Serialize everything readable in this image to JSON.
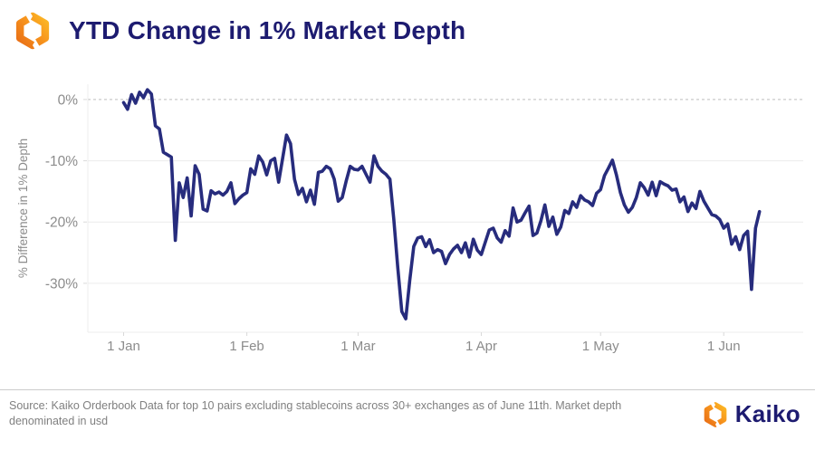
{
  "header": {
    "title": "YTD Change in 1% Market Depth",
    "logo_icon": "kaiko-hexagon-icon"
  },
  "footer": {
    "source_note": "Source: Kaiko Orderbook Data for top 10 pairs excluding stablecoins across 30+ exchanges as of June 11th. Market depth denominated in usd",
    "brand_name": "Kaiko",
    "brand_icon": "kaiko-hexagon-icon"
  },
  "colors": {
    "line": "#272c7d",
    "title_navy": "#1d1b70",
    "axis_text": "#8c8c8c",
    "grid": "#ececec",
    "zero_line": "#bdbdbd",
    "tick": "#d9d9d9",
    "divider": "#cccccc",
    "footer_text": "#808080",
    "logo_orange_dark": "#e96f16",
    "logo_orange_mid": "#f7941d",
    "logo_orange_light": "#fcb826",
    "background": "#ffffff"
  },
  "chart_data": {
    "type": "line",
    "title": "YTD Change in 1% Market Depth",
    "xlabel": "",
    "ylabel": "% Difference in 1% Depth",
    "x_unit": "days since 1 Jan",
    "x_tick_labels": [
      "1 Jan",
      "1 Feb",
      "1 Mar",
      "1 Apr",
      "1 May",
      "1 Jun"
    ],
    "x_tick_days": [
      0,
      31,
      59,
      90,
      120,
      151
    ],
    "xlim_days": [
      -9,
      171
    ],
    "y_ticks": [
      0,
      -10,
      -20,
      -30
    ],
    "y_tick_labels": [
      "0%",
      "-10%",
      "-20%",
      "-30%"
    ],
    "ylim": [
      -38,
      2.5
    ],
    "grid": "horizontal",
    "zero_line_style": "dashed",
    "legend": "none",
    "series": [
      {
        "name": "% difference in 1% depth (top 10 pairs, YTD)",
        "start_day": 0,
        "step_days": 1,
        "values": [
          -0.5,
          -1.6,
          0.8,
          -0.6,
          1.2,
          0.3,
          1.6,
          0.9,
          -4.3,
          -4.8,
          -8.6,
          -9.0,
          -9.4,
          -23.0,
          -13.6,
          -16.0,
          -12.8,
          -19.0,
          -10.8,
          -12.2,
          -17.9,
          -18.2,
          -14.9,
          -15.4,
          -15.1,
          -15.6,
          -15.0,
          -13.6,
          -17.0,
          -16.2,
          -15.6,
          -15.2,
          -11.3,
          -12.2,
          -9.2,
          -10.2,
          -12.3,
          -10.0,
          -9.6,
          -13.5,
          -9.6,
          -5.8,
          -7.2,
          -13.0,
          -15.5,
          -14.5,
          -16.7,
          -14.8,
          -17.1,
          -11.9,
          -11.7,
          -10.9,
          -11.3,
          -13.0,
          -16.6,
          -16.0,
          -13.3,
          -10.9,
          -11.4,
          -11.5,
          -10.9,
          -12.2,
          -13.5,
          -9.2,
          -10.9,
          -11.7,
          -12.2,
          -13.0,
          -19.6,
          -27.5,
          -34.6,
          -35.8,
          -29.5,
          -24.0,
          -22.6,
          -22.4,
          -24.0,
          -22.9,
          -25.0,
          -24.5,
          -24.8,
          -26.8,
          -25.3,
          -24.4,
          -23.8,
          -25.0,
          -23.4,
          -25.7,
          -22.8,
          -24.6,
          -25.3,
          -23.3,
          -21.3,
          -21.0,
          -22.6,
          -23.3,
          -21.4,
          -22.3,
          -17.7,
          -20.0,
          -19.7,
          -18.5,
          -17.4,
          -22.2,
          -21.8,
          -19.8,
          -17.2,
          -20.7,
          -19.2,
          -22.0,
          -20.8,
          -18.1,
          -18.6,
          -16.7,
          -17.6,
          -15.7,
          -16.4,
          -16.7,
          -17.3,
          -15.3,
          -14.7,
          -12.4,
          -11.2,
          -9.9,
          -12.3,
          -15.2,
          -17.2,
          -18.4,
          -17.6,
          -16.0,
          -13.6,
          -14.4,
          -15.6,
          -13.5,
          -15.7,
          -13.4,
          -13.8,
          -14.1,
          -14.8,
          -14.6,
          -16.7,
          -15.9,
          -18.3,
          -16.9,
          -17.8,
          -15.0,
          -16.6,
          -17.7,
          -18.8,
          -19.0,
          -19.6,
          -21.0,
          -20.3,
          -23.6,
          -22.4,
          -24.5,
          -22.2,
          -21.5,
          -31.0,
          -21.0,
          -18.3
        ]
      }
    ]
  }
}
